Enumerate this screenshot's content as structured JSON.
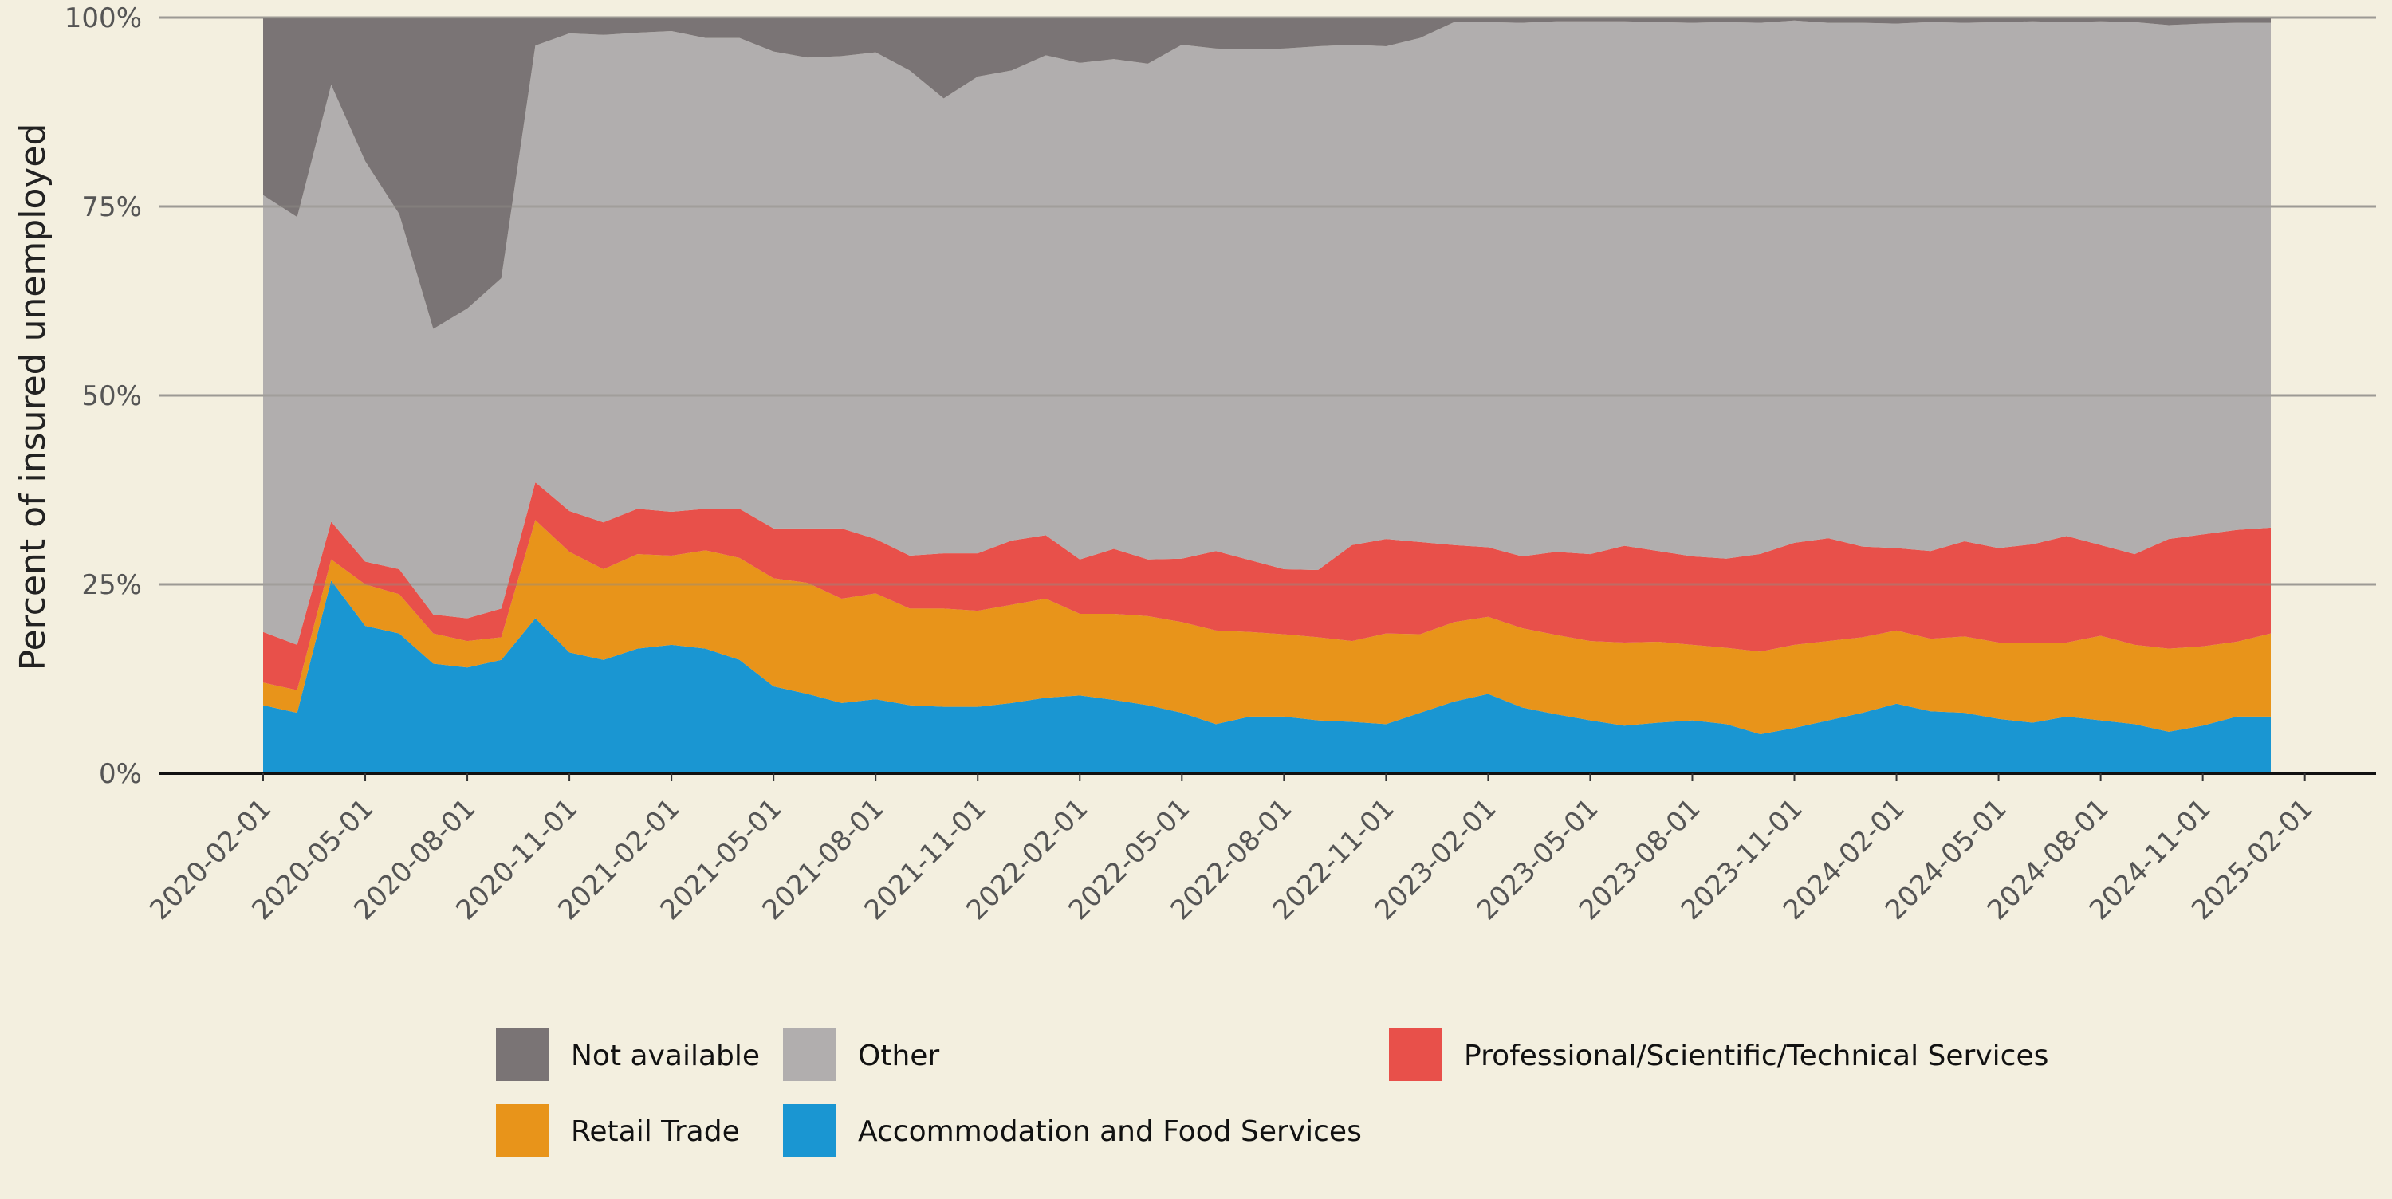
{
  "chart_data": {
    "type": "area",
    "stacked": "percent",
    "title": "",
    "xlabel": "",
    "ylabel": "Percent of insured unemployed",
    "ylim": [
      0,
      100
    ],
    "yticks": [
      0,
      25,
      50,
      75,
      100
    ],
    "ytick_labels": [
      "0%",
      "25%",
      "50%",
      "75%",
      "100%"
    ],
    "xticks": [
      "2020-02-01",
      "2020-05-01",
      "2020-08-01",
      "2020-11-01",
      "2021-02-01",
      "2021-05-01",
      "2021-08-01",
      "2021-11-01",
      "2022-02-01",
      "2022-05-01",
      "2022-08-01",
      "2022-11-01",
      "2023-02-01",
      "2023-05-01",
      "2023-08-01",
      "2023-11-01",
      "2024-02-01",
      "2024-05-01",
      "2024-08-01",
      "2024-11-01",
      "2025-02-01"
    ],
    "grid": "horizontal",
    "legend_position": "bottom",
    "x": [
      "2020-02-01",
      "2020-03-01",
      "2020-04-01",
      "2020-05-01",
      "2020-06-01",
      "2020-07-01",
      "2020-08-01",
      "2020-09-01",
      "2020-10-01",
      "2020-11-01",
      "2020-12-01",
      "2021-01-01",
      "2021-02-01",
      "2021-03-01",
      "2021-04-01",
      "2021-05-01",
      "2021-06-01",
      "2021-07-01",
      "2021-08-01",
      "2021-09-01",
      "2021-10-01",
      "2021-11-01",
      "2021-12-01",
      "2022-01-01",
      "2022-02-01",
      "2022-03-01",
      "2022-04-01",
      "2022-05-01",
      "2022-06-01",
      "2022-07-01",
      "2022-08-01",
      "2022-09-01",
      "2022-10-01",
      "2022-11-01",
      "2022-12-01",
      "2023-01-01",
      "2023-02-01",
      "2023-03-01",
      "2023-04-01",
      "2023-05-01",
      "2023-06-01",
      "2023-07-01",
      "2023-08-01",
      "2023-09-01",
      "2023-10-01",
      "2023-11-01",
      "2023-12-01",
      "2024-01-01",
      "2024-02-01",
      "2024-03-01",
      "2024-04-01",
      "2024-05-01",
      "2024-06-01",
      "2024-07-01",
      "2024-08-01",
      "2024-09-01",
      "2024-10-01",
      "2024-11-01",
      "2024-12-01",
      "2025-01-01"
    ],
    "series": [
      {
        "name": "Accommodation and Food Services",
        "color": "#1a96d2",
        "values": [
          9,
          8,
          25.5,
          19.5,
          18.5,
          14.5,
          14,
          15,
          20.5,
          16,
          15,
          16.5,
          17,
          16.5,
          15,
          11.5,
          10.5,
          9.3,
          9.8,
          9,
          8.8,
          8.8,
          9.3,
          10,
          10.3,
          9.7,
          9,
          8,
          6.5,
          7.5,
          7.5,
          7,
          6.8,
          6.5,
          8,
          9.5,
          10.5,
          8.7,
          7.8,
          7,
          6.3,
          6.7,
          7,
          6.5,
          5.2,
          6,
          7,
          8,
          9.2,
          8.2,
          8,
          7.2,
          6.7,
          7.5,
          7,
          6.5,
          5.5,
          6.3,
          7.5,
          7.5
        ]
      },
      {
        "name": "Retail Trade",
        "color": "#e8941a",
        "values": [
          3,
          3,
          2.8,
          5.5,
          5.2,
          4,
          3.5,
          3,
          13,
          13.3,
          12,
          12.5,
          11.8,
          13,
          13.5,
          14.3,
          14.7,
          13.8,
          14,
          12.8,
          13,
          12.7,
          13,
          13.1,
          10.8,
          11.4,
          11.8,
          12,
          12.4,
          11.2,
          10.9,
          11,
          10.7,
          12,
          10.4,
          10.5,
          10.2,
          10.5,
          10.5,
          10.5,
          11,
          10.7,
          10,
          10.1,
          11,
          11,
          10.5,
          10,
          9.7,
          9.6,
          10.1,
          10.1,
          10.5,
          9.8,
          11.2,
          10.5,
          11,
          10.5,
          9.9,
          11
        ]
      },
      {
        "name": "Professional/Scientific/Technical Services",
        "color": "#e8504a",
        "values": [
          6.7,
          6,
          5,
          3,
          3.3,
          2.5,
          3,
          3.8,
          5,
          5.4,
          6.2,
          6,
          5.8,
          5.5,
          6.5,
          6.6,
          7.2,
          9.3,
          7.2,
          7,
          7.3,
          7.6,
          8.5,
          8.4,
          7.2,
          8.6,
          7.5,
          8.4,
          10.5,
          9.5,
          8.6,
          8.9,
          12.7,
          12.5,
          12.2,
          10.2,
          9.2,
          9.5,
          11,
          11.5,
          12.8,
          12,
          11.7,
          11.8,
          13,
          13.5,
          13.6,
          12,
          10.9,
          11.6,
          12.6,
          12.5,
          13.1,
          14.1,
          12,
          12,
          14.5,
          14.8,
          14.8,
          14
        ]
      },
      {
        "name": "Other",
        "color": "#b1aeae",
        "values": [
          57.8,
          56.6,
          57.8,
          53,
          47,
          37.8,
          41,
          43.7,
          57.8,
          63.2,
          64.5,
          63,
          63.6,
          62.3,
          62.3,
          63.1,
          62.3,
          62.5,
          64.4,
          64.2,
          60.2,
          63.1,
          62.2,
          63.5,
          65.7,
          64.8,
          65.6,
          68,
          66.5,
          67.6,
          68.9,
          69.3,
          66.2,
          65.2,
          66.7,
          69.2,
          69.5,
          70.6,
          70.2,
          70.5,
          69.4,
          70,
          70.6,
          71,
          70.7,
          69.1,
          68.2,
          69.3,
          69.4,
          70,
          68.6,
          69.6,
          69.2,
          68,
          69.3,
          70.4,
          68,
          67.6,
          67.1,
          66.8
        ]
      },
      {
        "name": "Not available",
        "color": "#7a7475",
        "values": [
          23.5,
          26.4,
          8.9,
          19,
          26,
          41.2,
          38.5,
          34.5,
          3.7,
          2.1,
          2.3,
          2,
          1.8,
          2.7,
          2.7,
          4.5,
          5.3,
          5.1,
          4.6,
          7,
          10.7,
          7.8,
          7,
          5,
          6,
          5.5,
          6.1,
          3.6,
          4.1,
          4.2,
          4.1,
          3.8,
          3.6,
          3.8,
          2.7,
          0.6,
          0.6,
          0.7,
          0.5,
          0.5,
          0.5,
          0.6,
          0.7,
          0.6,
          0.7,
          0.4,
          0.7,
          0.7,
          0.8,
          0.6,
          0.7,
          0.6,
          0.5,
          0.6,
          0.5,
          0.6,
          1,
          0.8,
          0.7,
          0.7
        ]
      }
    ],
    "legend": {
      "row1": [
        {
          "label": "Not available",
          "color": "#7a7475"
        },
        {
          "label": "Other",
          "color": "#b1aeae"
        },
        {
          "label": "Professional/Scientific/Technical Services",
          "color": "#e8504a"
        }
      ],
      "row2": [
        {
          "label": "Retail Trade",
          "color": "#e8941a"
        },
        {
          "label": "Accommodation and Food Services",
          "color": "#1a96d2"
        }
      ]
    }
  }
}
